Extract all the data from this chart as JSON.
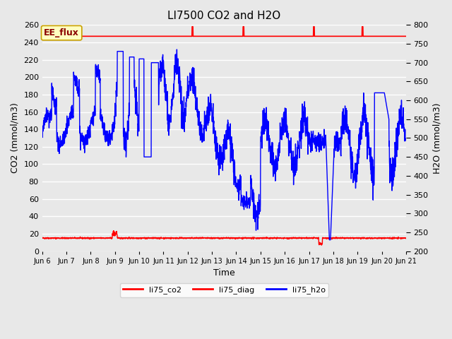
{
  "title": "LI7500 CO2 and H2O",
  "xlabel": "Time",
  "ylabel_left": "CO2 (mmol/m3)",
  "ylabel_right": "H2O (mmol/m3)",
  "ylim_left": [
    0,
    260
  ],
  "ylim_right": [
    200,
    800
  ],
  "yticks_left": [
    0,
    20,
    40,
    60,
    80,
    100,
    120,
    140,
    160,
    180,
    200,
    220,
    240,
    260
  ],
  "yticks_right": [
    200,
    250,
    300,
    350,
    400,
    450,
    500,
    550,
    600,
    650,
    700,
    750,
    800
  ],
  "bg_color": "#e8e8e8",
  "grid_color": "white",
  "ee_flux_box_facecolor": "#ffffc0",
  "ee_flux_box_edgecolor": "#c8a000",
  "ee_flux_text_color": "#8b0000",
  "diag_color": "red",
  "co2_color": "red",
  "h2o_color": "blue",
  "diag_line_value": 247,
  "co2_line_value": 15,
  "x_tick_labels": [
    "Jun 6",
    "Jun 7",
    "Jun 8",
    "Jun 9",
    "Jun 10",
    "Jun 11",
    "Jun 12",
    "Jun 13",
    "Jun 14",
    "Jun 15",
    "Jun 16",
    "Jun 17",
    "Jun 18",
    "Jun 19",
    "Jun 20",
    "Jun 21"
  ],
  "n_points": 2000,
  "figsize": [
    6.4,
    4.8
  ],
  "dpi": 100
}
